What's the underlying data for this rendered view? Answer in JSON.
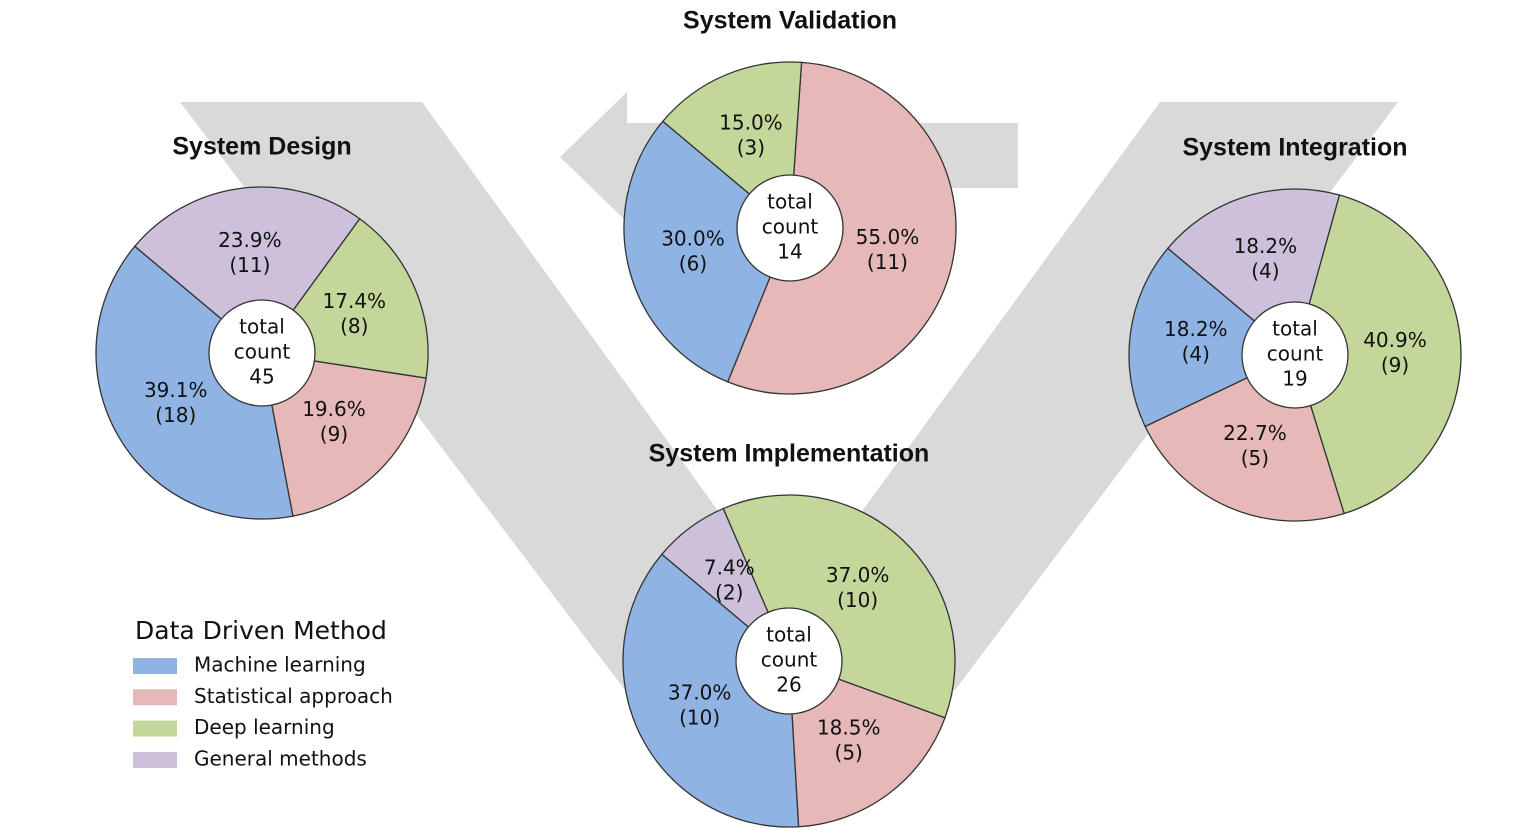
{
  "chart_data": [
    {
      "type": "pie",
      "title": "System Design",
      "startangle": 140,
      "categories": [
        "Machine learning",
        "Statistical approach",
        "Deep learning",
        "General methods"
      ],
      "colors": [
        "#8fb4e3",
        "#e6b8b7",
        "#c4d79b",
        "#ccc0da"
      ],
      "values": [
        39.1,
        19.6,
        17.4,
        23.9
      ],
      "value_labels": [
        "39.1%",
        "19.6%",
        "17.4%",
        "23.9%"
      ],
      "counts": [
        18,
        9,
        8,
        11
      ],
      "count_labels": [
        "(18)",
        "(9)",
        "(8)",
        "(11)"
      ],
      "center_label": [
        "total",
        "count"
      ],
      "total": 45
    },
    {
      "type": "pie",
      "title": "System Validation",
      "startangle": 140,
      "categories": [
        "Machine learning",
        "Statistical approach",
        "Deep learning"
      ],
      "colors": [
        "#8fb4e3",
        "#e6b8b7",
        "#c4d79b"
      ],
      "values": [
        30.0,
        55.0,
        15.0
      ],
      "value_labels": [
        "30.0%",
        "55.0%",
        "15.0%"
      ],
      "counts": [
        6,
        11,
        3
      ],
      "count_labels": [
        "(6)",
        "(11)",
        "(3)"
      ],
      "center_label": [
        "total",
        "count"
      ],
      "total": 14
    },
    {
      "type": "pie",
      "title": "System Implementation",
      "startangle": 140,
      "categories": [
        "Machine learning",
        "Statistical approach",
        "Deep learning",
        "General methods"
      ],
      "colors": [
        "#8fb4e3",
        "#e6b8b7",
        "#c4d79b",
        "#ccc0da"
      ],
      "values": [
        37.0,
        18.5,
        37.0,
        7.4
      ],
      "value_labels": [
        "37.0%",
        "18.5%",
        "37.0%",
        "7.4%"
      ],
      "counts": [
        10,
        5,
        10,
        2
      ],
      "count_labels": [
        "(10)",
        "(5)",
        "(10)",
        "(2)"
      ],
      "center_label": [
        "total",
        "count"
      ],
      "total": 26
    },
    {
      "type": "pie",
      "title": "System Integration",
      "startangle": 140,
      "categories": [
        "Machine learning",
        "Statistical approach",
        "Deep learning",
        "General methods"
      ],
      "colors": [
        "#8fb4e3",
        "#e6b8b7",
        "#c4d79b",
        "#ccc0da"
      ],
      "values": [
        18.2,
        22.7,
        40.9,
        18.2
      ],
      "value_labels": [
        "18.2%",
        "22.7%",
        "40.9%",
        "18.2%"
      ],
      "counts": [
        4,
        5,
        9,
        4
      ],
      "count_labels": [
        "(4)",
        "(5)",
        "(9)",
        "(4)"
      ],
      "center_label": [
        "total",
        "count"
      ],
      "total": 19
    }
  ],
  "legend": {
    "title": "Data Driven Method",
    "categories": [
      "Machine learning",
      "Statistical approach",
      "Deep learning",
      "General methods"
    ],
    "colors": [
      "#8fb4e3",
      "#e6b8b7",
      "#c4d79b",
      "#ccc0da"
    ]
  }
}
